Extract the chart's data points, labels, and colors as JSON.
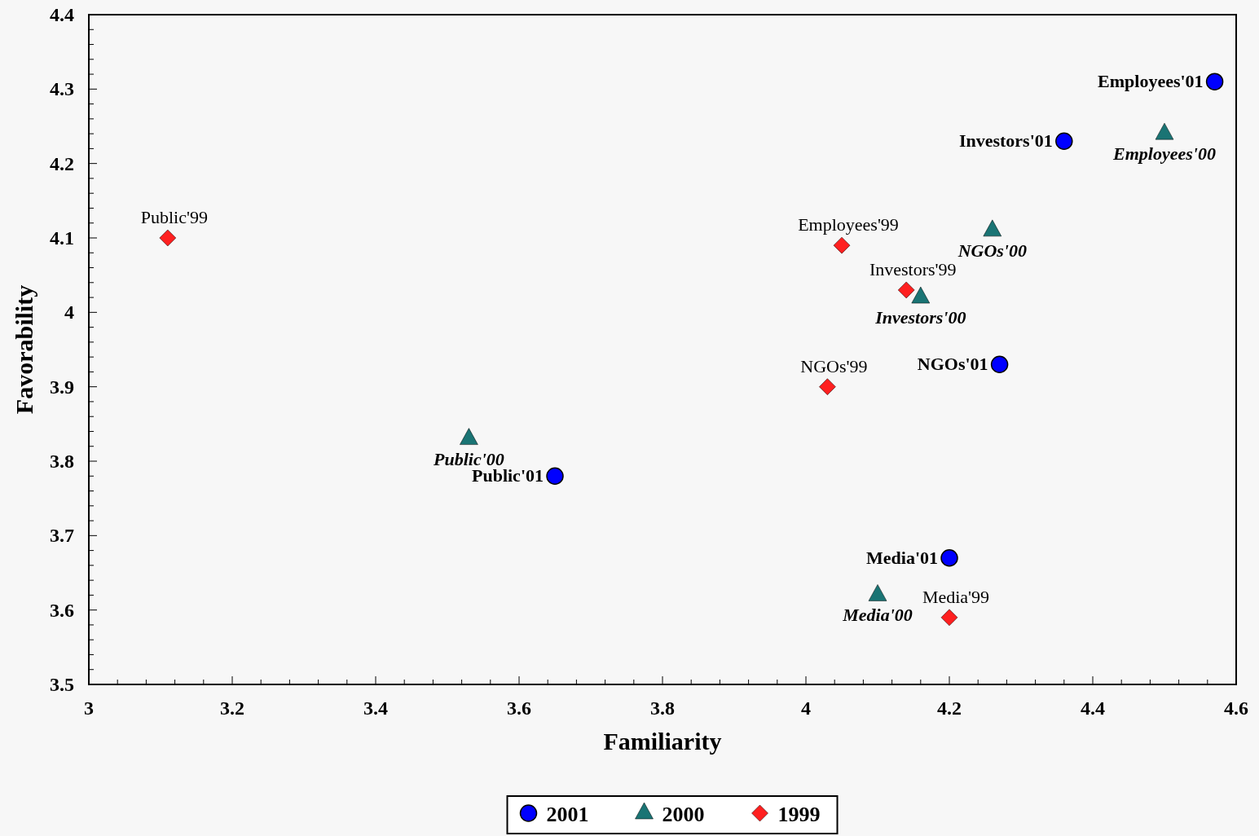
{
  "chart_data": {
    "type": "scatter",
    "xlabel": "Familiarity",
    "ylabel": "Favorability",
    "xlim": [
      3,
      4.6
    ],
    "ylim": [
      3.5,
      4.4
    ],
    "xticks": [
      3,
      {
        "value": 3.04,
        "label": null
      },
      {
        "value": 3.08,
        "label": null
      },
      {
        "value": 3.12,
        "label": null
      },
      {
        "value": 3.16,
        "label": null
      },
      3.2,
      {
        "value": 3.24,
        "label": null
      },
      {
        "value": 3.28,
        "label": null
      },
      {
        "value": 3.32,
        "label": null
      },
      {
        "value": 3.36,
        "label": null
      },
      3.4,
      {
        "value": 3.44,
        "label": null
      },
      {
        "value": 3.48,
        "label": null
      },
      {
        "value": 3.52,
        "label": null
      },
      {
        "value": 3.56,
        "label": null
      },
      3.6,
      {
        "value": 3.64,
        "label": null
      },
      {
        "value": 3.68,
        "label": null
      },
      {
        "value": 3.72,
        "label": null
      },
      {
        "value": 3.76,
        "label": null
      },
      3.8,
      {
        "value": 3.84,
        "label": null
      },
      {
        "value": 3.88,
        "label": null
      },
      {
        "value": 3.92,
        "label": null
      },
      {
        "value": 3.96,
        "label": null
      },
      4,
      {
        "value": 4.04,
        "label": null
      },
      {
        "value": 4.08,
        "label": null
      },
      {
        "value": 4.12,
        "label": null
      },
      {
        "value": 4.16,
        "label": null
      },
      4.2,
      {
        "value": 4.24,
        "label": null
      },
      {
        "value": 4.28,
        "label": null
      },
      {
        "value": 4.32,
        "label": null
      },
      {
        "value": 4.36,
        "label": null
      },
      4.4,
      {
        "value": 4.44,
        "label": null
      },
      {
        "value": 4.48,
        "label": null
      },
      {
        "value": 4.52,
        "label": null
      },
      {
        "value": 4.56,
        "label": null
      },
      4.6
    ],
    "yticks": [
      3.5,
      {
        "value": 3.52,
        "label": null
      },
      {
        "value": 3.54,
        "label": null
      },
      {
        "value": 3.56,
        "label": null
      },
      {
        "value": 3.58,
        "label": null
      },
      3.6,
      {
        "value": 3.62,
        "label": null
      },
      {
        "value": 3.64,
        "label": null
      },
      {
        "value": 3.66,
        "label": null
      },
      {
        "value": 3.68,
        "label": null
      },
      3.7,
      {
        "value": 3.72,
        "label": null
      },
      {
        "value": 3.74,
        "label": null
      },
      {
        "value": 3.76,
        "label": null
      },
      {
        "value": 3.78,
        "label": null
      },
      3.8,
      {
        "value": 3.82,
        "label": null
      },
      {
        "value": 3.84,
        "label": null
      },
      {
        "value": 3.86,
        "label": null
      },
      {
        "value": 3.88,
        "label": null
      },
      3.9,
      {
        "value": 3.92,
        "label": null
      },
      {
        "value": 3.94,
        "label": null
      },
      {
        "value": 3.96,
        "label": null
      },
      {
        "value": 3.98,
        "label": null
      },
      4,
      {
        "value": 4.02,
        "label": null
      },
      {
        "value": 4.04,
        "label": null
      },
      {
        "value": 4.06,
        "label": null
      },
      {
        "value": 4.08,
        "label": null
      },
      4.1,
      {
        "value": 4.12,
        "label": null
      },
      {
        "value": 4.14,
        "label": null
      },
      {
        "value": 4.16,
        "label": null
      },
      {
        "value": 4.18,
        "label": null
      },
      4.2,
      {
        "value": 4.22,
        "label": null
      },
      {
        "value": 4.24,
        "label": null
      },
      {
        "value": 4.26,
        "label": null
      },
      {
        "value": 4.28,
        "label": null
      },
      4.3,
      {
        "value": 4.32,
        "label": null
      },
      {
        "value": 4.34,
        "label": null
      },
      {
        "value": 4.36,
        "label": null
      },
      {
        "value": 4.38,
        "label": null
      },
      4.4
    ],
    "grid": false,
    "legend": "bottom",
    "series": [
      {
        "name": "2001",
        "color": "#0000ff",
        "marker": "circle",
        "x": [
          4.57,
          4.36,
          4.27,
          3.65,
          4.2
        ],
        "values": [
          4.31,
          4.23,
          3.93,
          3.78,
          3.67
        ]
      },
      {
        "name": "2000",
        "color": "#1a7474",
        "marker": "triangle",
        "x": [
          4.5,
          4.26,
          4.16,
          3.53,
          4.1
        ],
        "values": [
          4.24,
          4.11,
          4.02,
          3.83,
          3.62
        ]
      },
      {
        "name": "1999",
        "color": "#ff2020",
        "marker": "diamond",
        "x": [
          3.11,
          4.05,
          4.14,
          4.03,
          4.2
        ],
        "values": [
          4.1,
          4.09,
          4.03,
          3.9,
          3.59
        ]
      }
    ],
    "annotations": [
      {
        "text": "Employees'01",
        "x": 4.57,
        "y": 4.31
      },
      {
        "text": "Investors'01",
        "x": 4.36,
        "y": 4.23
      },
      {
        "text": "NGOs'01",
        "x": 4.27,
        "y": 3.93
      },
      {
        "text": "Public'01",
        "x": 3.65,
        "y": 3.78
      },
      {
        "text": "Media'01",
        "x": 4.2,
        "y": 3.67
      },
      {
        "text": "Employees'00",
        "x": 4.5,
        "y": 4.24
      },
      {
        "text": "NGOs'00",
        "x": 4.26,
        "y": 4.11
      },
      {
        "text": "Investors'00",
        "x": 4.16,
        "y": 4.02
      },
      {
        "text": "Public'00",
        "x": 3.53,
        "y": 3.83
      },
      {
        "text": "Media'00",
        "x": 4.1,
        "y": 3.62
      },
      {
        "text": "Public'99",
        "x": 3.11,
        "y": 4.1
      },
      {
        "text": "Employees'99",
        "x": 4.05,
        "y": 4.09
      },
      {
        "text": "Investors'99",
        "x": 4.14,
        "y": 4.03
      },
      {
        "text": "NGOs'99",
        "x": 4.03,
        "y": 3.9
      },
      {
        "text": "Media'99",
        "x": 4.2,
        "y": 3.59
      }
    ]
  }
}
